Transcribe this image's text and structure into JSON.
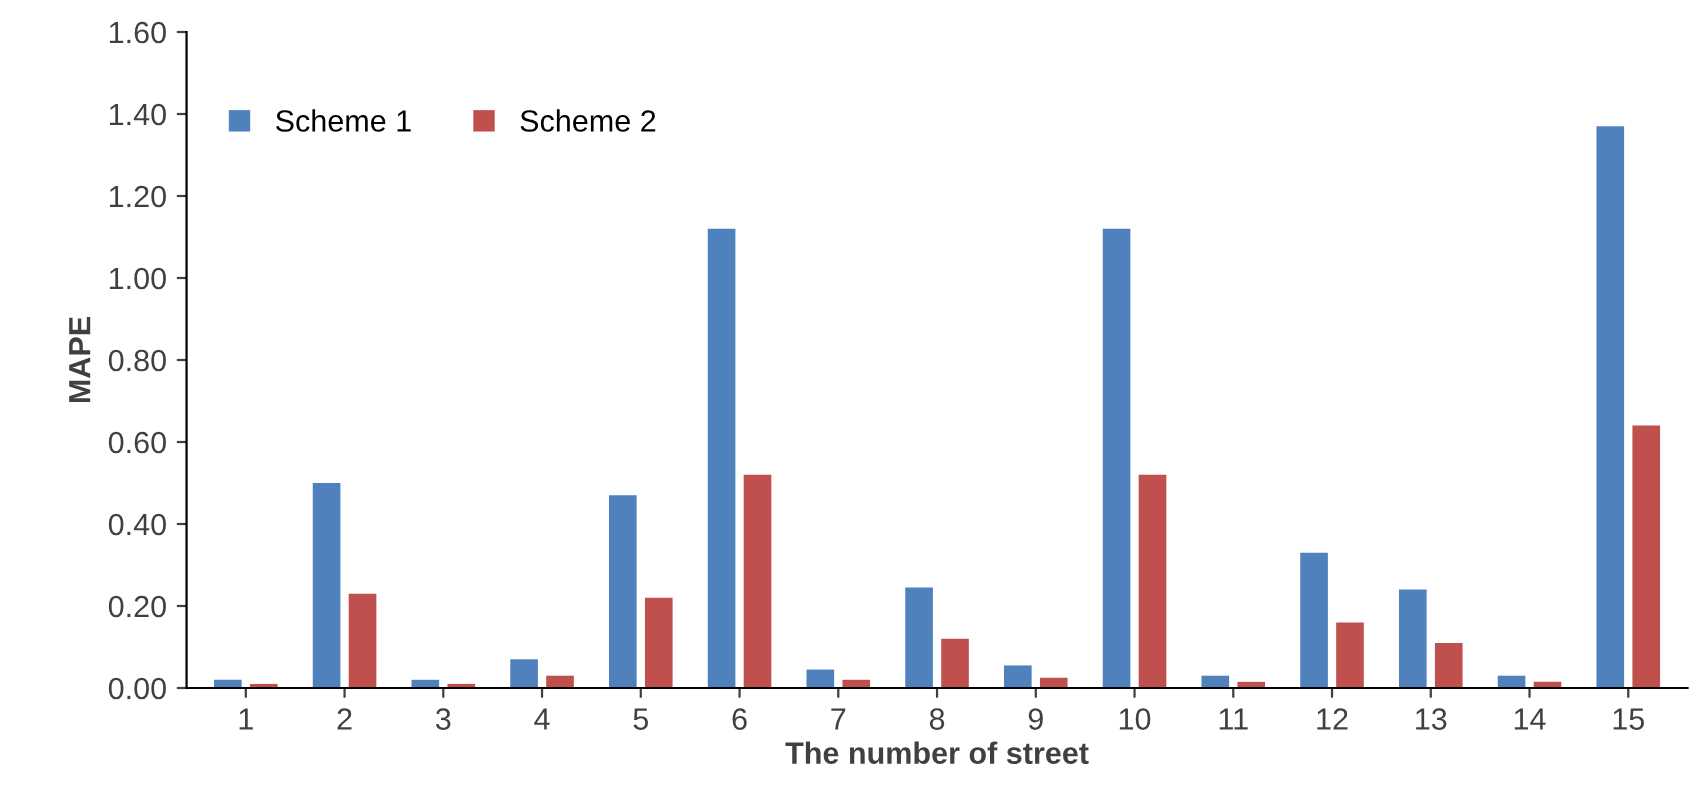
{
  "chart_data": {
    "type": "bar",
    "xlabel": "The number of street",
    "ylabel": "MAPE",
    "categories": [
      "1",
      "2",
      "3",
      "4",
      "5",
      "6",
      "7",
      "8",
      "9",
      "10",
      "11",
      "12",
      "13",
      "14",
      "15"
    ],
    "series": [
      {
        "name": "Scheme 1",
        "color": "#4f81bd",
        "values": [
          0.02,
          0.5,
          0.02,
          0.07,
          0.47,
          1.12,
          0.045,
          0.245,
          0.055,
          1.12,
          0.03,
          0.33,
          0.24,
          0.03,
          1.37
        ]
      },
      {
        "name": "Scheme 2",
        "color": "#c0504d",
        "values": [
          0.01,
          0.23,
          0.01,
          0.03,
          0.22,
          0.52,
          0.02,
          0.12,
          0.025,
          0.52,
          0.015,
          0.16,
          0.11,
          0.015,
          0.64
        ]
      }
    ],
    "ylim": [
      0,
      1.6
    ],
    "yticks": [
      {
        "value": 0,
        "label": "0.00"
      },
      {
        "value": 0.2,
        "label": "0.20"
      },
      {
        "value": 0.4,
        "label": "0.40"
      },
      {
        "value": 0.6,
        "label": "0.60"
      },
      {
        "value": 0.8,
        "label": "0.80"
      },
      {
        "value": 1.0,
        "label": "1.00"
      },
      {
        "value": 1.2,
        "label": "1.20"
      },
      {
        "value": 1.4,
        "label": "1.40"
      },
      {
        "value": 1.6,
        "label": "1.60"
      }
    ],
    "grid": false,
    "legend": "top left"
  }
}
